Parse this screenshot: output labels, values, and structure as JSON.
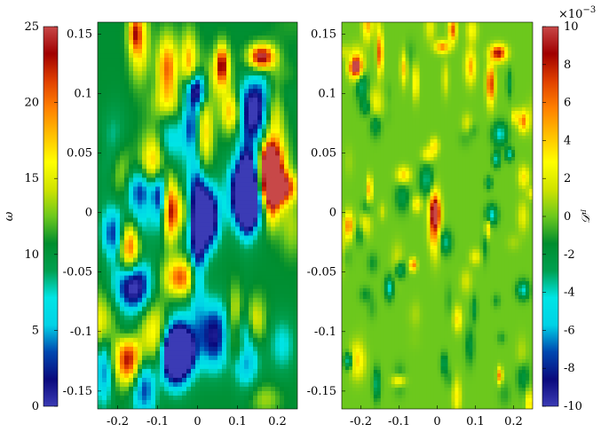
{
  "chart_data": [
    {
      "type": "heatmap",
      "title": "",
      "xlabel": "",
      "ylabel": "",
      "xlim": [
        -0.25,
        0.25
      ],
      "ylim": [
        -0.165,
        0.16
      ],
      "x_ticks": [
        -0.2,
        -0.1,
        0,
        0.1,
        0.2
      ],
      "x_tick_labels": [
        "-0.2",
        "-0.1",
        "0",
        "0.1",
        "0.2"
      ],
      "y_ticks": [
        0.15,
        0.1,
        0.05,
        0,
        -0.05,
        -0.1,
        -0.15
      ],
      "y_tick_labels": [
        "0.15",
        "0.1",
        "0.05",
        "0",
        "-0.05",
        "-0.1",
        "-0.15"
      ],
      "colorbar": {
        "label": "ω",
        "position": "left",
        "range": [
          0,
          25
        ],
        "ticks": [
          0,
          5,
          10,
          15,
          20,
          25
        ],
        "tick_labels": [
          "0",
          "5",
          "10",
          "15",
          "20",
          "25"
        ]
      },
      "colormap": [
        "#3b3bb5",
        "#0a0a7d",
        "#0047b0",
        "#00d2e6",
        "#00e5e5",
        "#00a050",
        "#008d2e",
        "#6cc81d",
        "#cfe300",
        "#ffff00",
        "#ffc000",
        "#ff8000",
        "#e04000",
        "#a00000",
        "#c84848"
      ],
      "grid": false
    },
    {
      "type": "heatmap",
      "title": "",
      "xlabel": "",
      "ylabel": "",
      "xlim": [
        -0.25,
        0.25
      ],
      "ylim": [
        -0.165,
        0.16
      ],
      "x_ticks": [
        -0.2,
        -0.1,
        0,
        0.1,
        0.2
      ],
      "x_tick_labels": [
        "-0.2",
        "-0.1",
        "0",
        "0.1",
        "0.2"
      ],
      "y_ticks": [
        0.15,
        0.1,
        0.05,
        0,
        -0.05,
        -0.1,
        -0.15
      ],
      "y_tick_labels": [
        "0.15",
        "0.1",
        "0.05",
        "0",
        "-0.05",
        "-0.1",
        "-0.15"
      ],
      "colorbar": {
        "label": "𝒟ᶦᴵ",
        "position": "right",
        "range": [
          -10,
          10
        ],
        "ticks": [
          10,
          8,
          6,
          4,
          2,
          0,
          -2,
          -4,
          -6,
          -8,
          -10
        ],
        "tick_labels": [
          "10",
          "8",
          "6",
          "4",
          "2",
          "0",
          "-2",
          "-4",
          "-6",
          "-8",
          "-10"
        ],
        "exponent_base": "×10",
        "exponent_power": "−3"
      },
      "grid": false
    }
  ]
}
